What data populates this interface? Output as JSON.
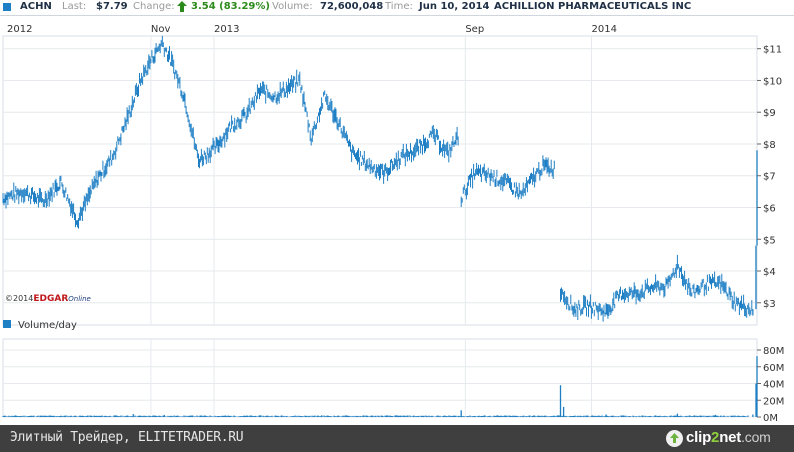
{
  "header": {
    "symbol": "ACHN",
    "last_label": "Last:",
    "last_value": "$7.79",
    "change_label": "Change:",
    "change_value": "3.54 (83.29%)",
    "volume_label": "Volume:",
    "volume_value": "72,600,048",
    "time_label": "Time:",
    "time_value": "Jun 10, 2014",
    "company": "ACHILLION PHARMACEUTICALS INC",
    "change_arrow_icon": "up-arrow-icon",
    "series_color": "#1f7fc4",
    "change_color": "#2a8a1a"
  },
  "copyright": {
    "prefix": "©2014",
    "brand": "EDGAR",
    "suffix": "Online"
  },
  "volume_legend": "Volume/day",
  "footer": {
    "text": "Элитный Трейдер, ELITETRADER.RU",
    "logo": {
      "part1": "clip",
      "part2": "2",
      "part3": "net",
      "part4": ".com",
      "icon": "upload-arrow-icon"
    }
  },
  "chart_data": [
    {
      "type": "line",
      "subtype": "ohlc-bars",
      "series": [
        {
          "name": "ACHN",
          "color": "#1f7fc4",
          "points": [
            [
              "2012-06-11",
              6.3
            ],
            [
              "2012-07-01",
              6.5
            ],
            [
              "2012-07-20",
              6.2
            ],
            [
              "2012-08-06",
              6.8
            ],
            [
              "2012-08-22",
              5.6
            ],
            [
              "2012-09-10",
              6.9
            ],
            [
              "2012-09-25",
              7.6
            ],
            [
              "2012-10-08",
              8.7
            ],
            [
              "2012-10-22",
              10.0
            ],
            [
              "2012-11-02",
              10.7
            ],
            [
              "2012-11-12",
              11.2
            ],
            [
              "2012-11-22",
              10.5
            ],
            [
              "2012-12-03",
              9.5
            ],
            [
              "2012-12-17",
              7.5
            ],
            [
              "2013-01-03",
              7.9
            ],
            [
              "2013-01-18",
              8.6
            ],
            [
              "2013-02-01",
              8.9
            ],
            [
              "2013-02-15",
              9.7
            ],
            [
              "2013-03-01",
              9.5
            ],
            [
              "2013-03-15",
              9.8
            ],
            [
              "2013-03-25",
              10.0
            ],
            [
              "2013-04-05",
              8.2
            ],
            [
              "2013-04-18",
              9.5
            ],
            [
              "2013-05-01",
              8.7
            ],
            [
              "2013-05-15",
              7.7
            ],
            [
              "2013-06-01",
              7.3
            ],
            [
              "2013-06-15",
              7.1
            ],
            [
              "2013-07-01",
              7.6
            ],
            [
              "2013-07-15",
              7.8
            ],
            [
              "2013-08-01",
              8.3
            ],
            [
              "2013-08-15",
              7.7
            ],
            [
              "2013-08-26",
              8.3
            ],
            [
              "2013-08-28",
              6.3
            ],
            [
              "2013-09-10",
              7.1
            ],
            [
              "2013-09-25",
              7.0
            ],
            [
              "2013-10-10",
              6.8
            ],
            [
              "2013-10-25",
              6.4
            ],
            [
              "2013-11-05",
              6.9
            ],
            [
              "2013-11-15",
              7.3
            ],
            [
              "2013-11-27",
              7.2
            ],
            [
              "2013-12-02",
              3.4
            ],
            [
              "2013-12-15",
              2.8
            ],
            [
              "2013-12-30",
              2.9
            ],
            [
              "2014-01-15",
              2.7
            ],
            [
              "2014-01-30",
              3.3
            ],
            [
              "2014-02-15",
              3.3
            ],
            [
              "2014-03-01",
              3.5
            ],
            [
              "2014-03-15",
              3.5
            ],
            [
              "2014-03-25",
              4.2
            ],
            [
              "2014-04-08",
              3.3
            ],
            [
              "2014-04-22",
              3.6
            ],
            [
              "2014-05-06",
              3.6
            ],
            [
              "2014-05-20",
              3.0
            ],
            [
              "2014-06-03",
              2.8
            ],
            [
              "2014-06-06",
              2.8
            ],
            [
              "2014-06-09",
              4.8
            ],
            [
              "2014-06-10",
              7.8
            ]
          ]
        }
      ],
      "x_ticks": [
        "2012",
        "Nov",
        "2013",
        "Sep",
        "2014"
      ],
      "y_ticks": [
        "$3",
        "$4",
        "$5",
        "$6",
        "$7",
        "$8",
        "$9",
        "$10",
        "$11"
      ],
      "ylim": [
        2.3,
        11.4
      ],
      "y_scale": "linear",
      "grid": true
    },
    {
      "type": "bar",
      "series": [
        {
          "name": "Volume/day",
          "color": "#1f7fc4",
          "points": [
            [
              "2012-06-11",
              1.0
            ],
            [
              "2012-09-01",
              1.5
            ],
            [
              "2012-10-15",
              3.5
            ],
            [
              "2012-11-14",
              2.5
            ],
            [
              "2013-01-15",
              1.5
            ],
            [
              "2013-04-15",
              2.0
            ],
            [
              "2013-07-01",
              1.5
            ],
            [
              "2013-08-28",
              8.0
            ],
            [
              "2013-10-01",
              1.5
            ],
            [
              "2013-12-02",
              38.0
            ],
            [
              "2013-12-05",
              12.0
            ],
            [
              "2014-01-15",
              3.0
            ],
            [
              "2014-03-25",
              4.0
            ],
            [
              "2014-05-01",
              2.5
            ],
            [
              "2014-06-06",
              3.0
            ],
            [
              "2014-06-09",
              40.0
            ],
            [
              "2014-06-10",
              72.6
            ]
          ]
        }
      ],
      "y_ticks": [
        "0M",
        "20M",
        "40M",
        "60M",
        "80M"
      ],
      "ylim": [
        0,
        80
      ],
      "unit": "M",
      "grid": true
    }
  ]
}
